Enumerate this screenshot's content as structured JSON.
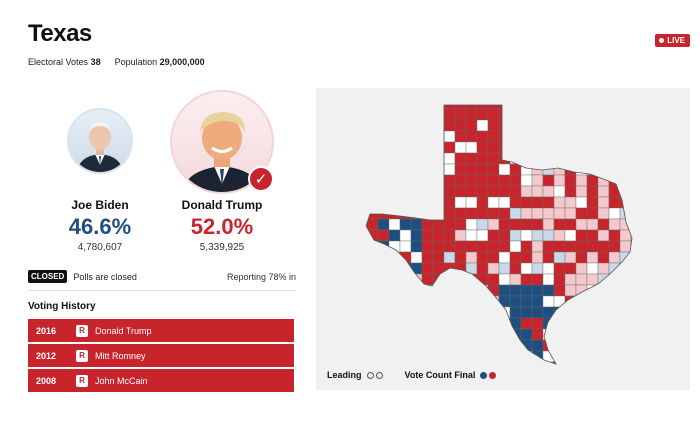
{
  "state": {
    "name": "Texas",
    "electoral_votes_label": "Electoral Votes",
    "electoral_votes": "38",
    "population_label": "Population",
    "population": "29,000,000",
    "live_label": "LIVE"
  },
  "candidates": [
    {
      "name": "Joe Biden",
      "percent": "46.6%",
      "votes": "4,780,607",
      "color": "#1f4f80"
    },
    {
      "name": "Donald Trump",
      "percent": "52.0%",
      "votes": "5,339,925",
      "color": "#c8242b",
      "winner": true
    }
  ],
  "status": {
    "badge": "CLOSED",
    "text": "Polls are closed",
    "reporting": "Reporting 78% in"
  },
  "voting_history": {
    "title": "Voting History",
    "rows": [
      {
        "year": "2016",
        "party": "R",
        "name": "Donald Trump"
      },
      {
        "year": "2012",
        "party": "R",
        "name": "Mitt Romney"
      },
      {
        "year": "2008",
        "party": "R",
        "name": "John McCain"
      }
    ]
  },
  "legend": {
    "leading": "Leading",
    "final": "Vote Count Final"
  },
  "colors": {
    "republican": "#c8242b",
    "democrat": "#1f4f80",
    "lean_republican": "#f3c9cc",
    "lean_democrat": "#c9d9ea"
  },
  "icons": {
    "winner_check": "check-icon",
    "live_dot": "dot-icon"
  }
}
